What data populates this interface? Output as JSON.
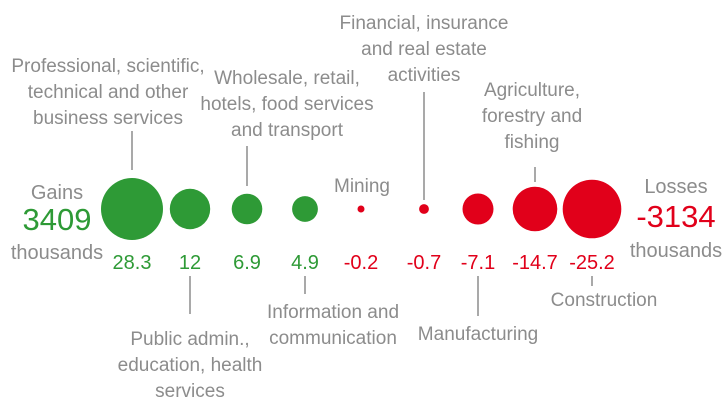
{
  "chart_data": {
    "type": "bubble",
    "title": "",
    "colors": {
      "gain": "#2e9a36",
      "loss": "#e1001a",
      "text": "#8c8c8c"
    },
    "gains": {
      "label": "Gains",
      "total": "3409",
      "unit": "thousands"
    },
    "losses": {
      "label": "Losses",
      "total": "-3134",
      "unit": "thousands"
    },
    "series": [
      {
        "category": [
          "Professional, scientific,",
          "technical and other",
          "business services"
        ],
        "value": 28.3,
        "value_label": "28.3"
      },
      {
        "category": [
          "Public admin.,",
          "education, health",
          "services"
        ],
        "value": 12,
        "value_label": "12"
      },
      {
        "category": [
          "Wholesale, retail,",
          "hotels, food services",
          "and transport"
        ],
        "value": 6.9,
        "value_label": "6.9"
      },
      {
        "category": [
          "Information and",
          "communication"
        ],
        "value": 4.9,
        "value_label": "4.9"
      },
      {
        "category": [
          "Mining"
        ],
        "value": -0.2,
        "value_label": "-0.2"
      },
      {
        "category": [
          "Financial, insurance",
          "and real estate",
          "activities"
        ],
        "value": -0.7,
        "value_label": "-0.7"
      },
      {
        "category": [
          "Manufacturing"
        ],
        "value": -7.1,
        "value_label": "-7.1"
      },
      {
        "category": [
          "Agriculture,",
          "forestry and",
          "fishing"
        ],
        "value": -14.7,
        "value_label": "-14.7"
      },
      {
        "category": [
          "Construction"
        ],
        "value": -25.2,
        "value_label": "-25.2"
      }
    ]
  }
}
